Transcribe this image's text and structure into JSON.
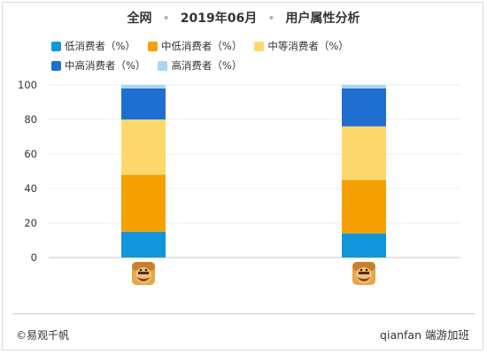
{
  "header": {
    "part1": "全网",
    "part2": "2019年06月",
    "part3": "用户属性分析"
  },
  "footer": {
    "source": "©易观千帆",
    "watermark": "qianfan 端游加班"
  },
  "colors": {
    "low": "#1296db",
    "mid_low": "#f7a004",
    "mid": "#fdd96d",
    "mid_high": "#1f6fd1",
    "high": "#a8d8f0"
  },
  "chart_data": {
    "type": "bar",
    "stacked": true,
    "categories": [
      "app-icon-1",
      "app-icon-2"
    ],
    "category_icons": [
      "clash-game-icon",
      "clash-game-icon"
    ],
    "series": [
      {
        "name": "低消费者（%）",
        "color": "#1296db",
        "values": [
          15,
          14
        ]
      },
      {
        "name": "中低消费者（%）",
        "color": "#f7a004",
        "values": [
          33,
          31
        ]
      },
      {
        "name": "中等消费者（%）",
        "color": "#fdd96d",
        "values": [
          32,
          31
        ]
      },
      {
        "name": "中高消费者（%）",
        "color": "#1f6fd1",
        "values": [
          18,
          22
        ]
      },
      {
        "name": "高消费者（%）",
        "color": "#a8d8f0",
        "values": [
          2,
          2
        ]
      }
    ],
    "ylim": [
      0,
      100
    ],
    "yticks": [
      "0",
      "20",
      "40",
      "60",
      "80",
      "100"
    ],
    "grid": true,
    "legend": "top"
  }
}
